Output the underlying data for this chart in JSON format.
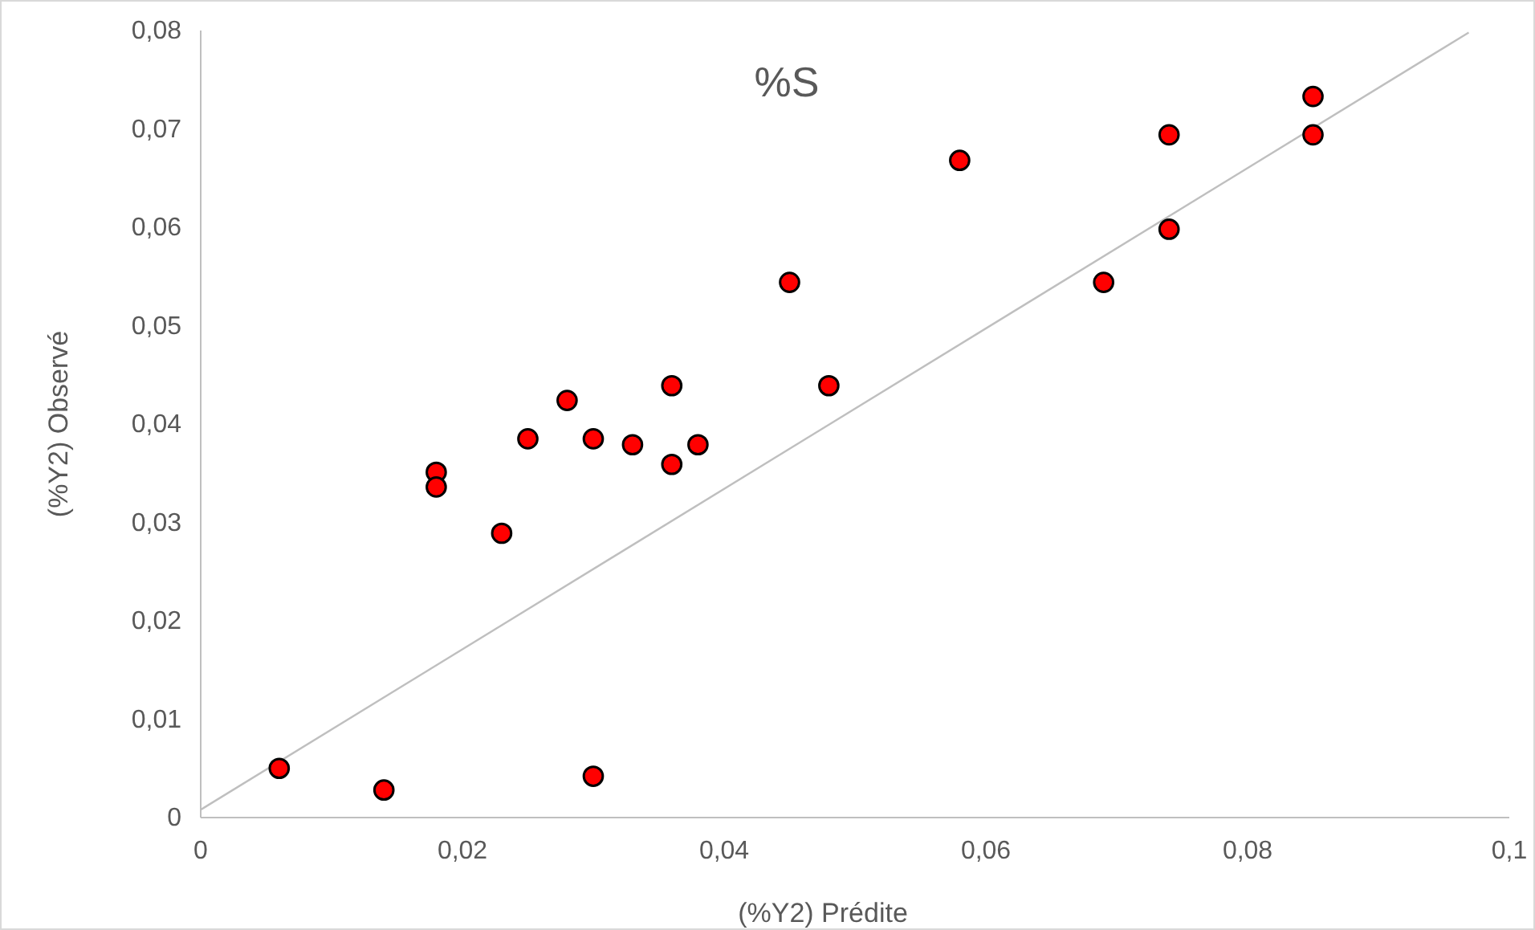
{
  "chart_data": {
    "type": "scatter",
    "title": "%S",
    "xlabel": "(%Y2) Prédite",
    "ylabel": "(%Y2) Observé",
    "xlim": [
      0,
      0.1
    ],
    "ylim": [
      0,
      0.08
    ],
    "xticks": [
      0,
      {
        "value": 0.02,
        "label": "0,02"
      },
      {
        "value": 0.04,
        "label": "0,04"
      },
      {
        "value": 0.06,
        "label": "0,06"
      },
      {
        "value": 0.08,
        "label": "0,08"
      },
      {
        "value": 0.1,
        "label": "0,1"
      }
    ],
    "yticks": [
      0,
      {
        "value": 0.01,
        "label": "0,01"
      },
      {
        "value": 0.02,
        "label": "0,02"
      },
      {
        "value": 0.03,
        "label": "0,03"
      },
      {
        "value": 0.04,
        "label": "0,04"
      },
      {
        "value": 0.05,
        "label": "0,05"
      },
      {
        "value": 0.06,
        "label": "0,06"
      },
      {
        "value": 0.07,
        "label": "0,07"
      },
      {
        "value": 0.08,
        "label": "0,08"
      }
    ],
    "grid": false,
    "series": [
      {
        "marker": "circle",
        "color": "#ff0000",
        "x": [
          0.006,
          0.014,
          0.018,
          0.018,
          0.023,
          0.025,
          0.028,
          0.03,
          0.03,
          0.033,
          0.036,
          0.036,
          0.038,
          0.045,
          0.048,
          0.058,
          0.069,
          0.074,
          0.074,
          0.085,
          0.085
        ],
        "values": [
          0.005,
          0.0028,
          0.0351,
          0.0336,
          0.0289,
          0.0385,
          0.0424,
          0.0385,
          0.0042,
          0.0379,
          0.0359,
          0.0439,
          0.0379,
          0.0544,
          0.0439,
          0.0668,
          0.0544,
          0.0598,
          0.0694,
          0.0733,
          0.0694
        ]
      },
      {
        "type": "line",
        "color": "#bfbfbf",
        "x": [
          0,
          0.0969
        ],
        "values": [
          0.0008,
          0.0798
        ]
      }
    ]
  }
}
